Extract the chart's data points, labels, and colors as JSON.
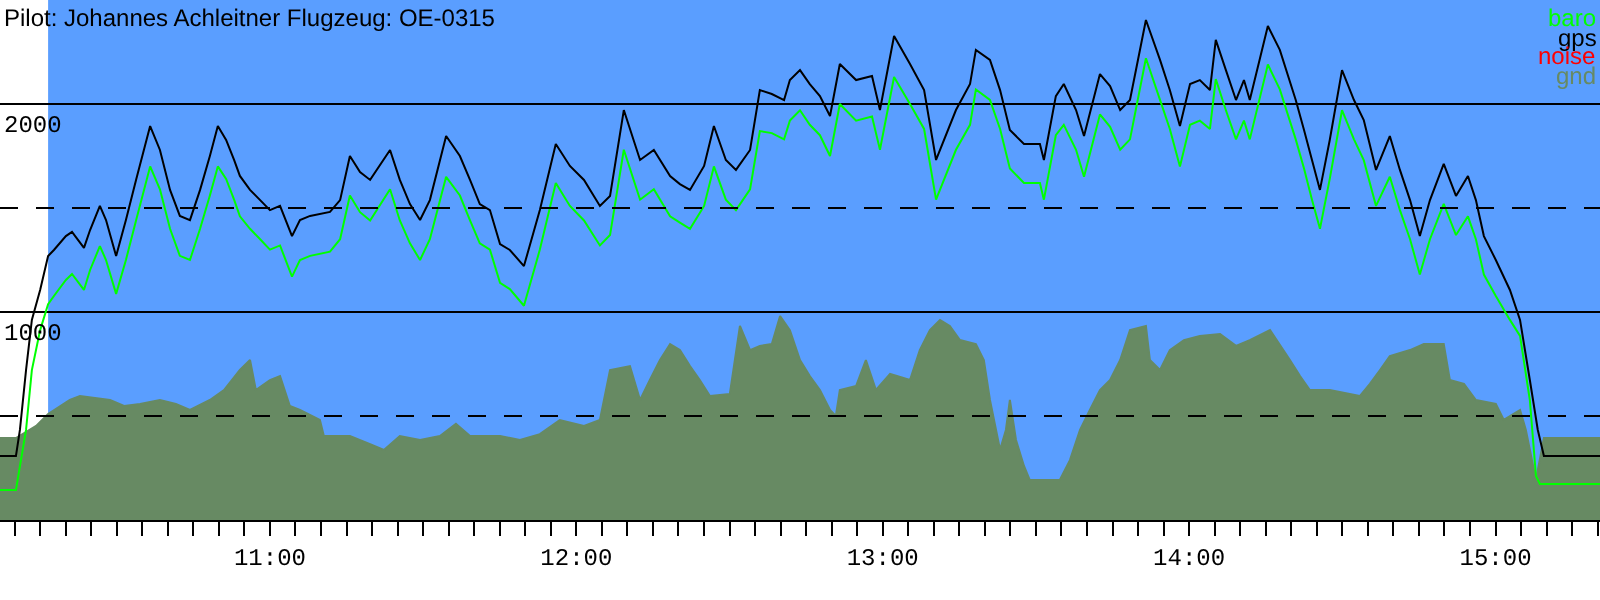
{
  "chart_data": {
    "type": "line",
    "title": "Pilot: Johannes Achleitner Flugzeug: OE-0315",
    "xlim": [
      10.119,
      15.341
    ],
    "ylim": [
      0,
      2500
    ],
    "yticks": [
      1000,
      2000
    ],
    "xticks": [
      {
        "value": 10.1667,
        "label": null
      },
      {
        "value": 10.25,
        "label": null
      },
      {
        "value": 10.3333,
        "label": null
      },
      {
        "value": 10.4167,
        "label": null
      },
      {
        "value": 10.5,
        "label": null
      },
      {
        "value": 10.5833,
        "label": null
      },
      {
        "value": 10.6667,
        "label": null
      },
      {
        "value": 10.75,
        "label": null
      },
      {
        "value": 10.8333,
        "label": null
      },
      {
        "value": 10.9167,
        "label": null
      },
      {
        "value": 11,
        "label": "11:00"
      },
      {
        "value": 11.0833,
        "label": null
      },
      {
        "value": 11.1667,
        "label": null
      },
      {
        "value": 11.25,
        "label": null
      },
      {
        "value": 11.3333,
        "label": null
      },
      {
        "value": 11.4167,
        "label": null
      },
      {
        "value": 11.5,
        "label": null
      },
      {
        "value": 11.5833,
        "label": null
      },
      {
        "value": 11.6667,
        "label": null
      },
      {
        "value": 11.75,
        "label": null
      },
      {
        "value": 11.8333,
        "label": null
      },
      {
        "value": 11.9167,
        "label": null
      },
      {
        "value": 12,
        "label": "12:00"
      },
      {
        "value": 12.0833,
        "label": null
      },
      {
        "value": 12.1667,
        "label": null
      },
      {
        "value": 12.25,
        "label": null
      },
      {
        "value": 12.3333,
        "label": null
      },
      {
        "value": 12.4167,
        "label": null
      },
      {
        "value": 12.5,
        "label": null
      },
      {
        "value": 12.5833,
        "label": null
      },
      {
        "value": 12.6667,
        "label": null
      },
      {
        "value": 12.75,
        "label": null
      },
      {
        "value": 12.8333,
        "label": null
      },
      {
        "value": 12.9167,
        "label": null
      },
      {
        "value": 13,
        "label": "13:00"
      },
      {
        "value": 13.0833,
        "label": null
      },
      {
        "value": 13.1667,
        "label": null
      },
      {
        "value": 13.25,
        "label": null
      },
      {
        "value": 13.3333,
        "label": null
      },
      {
        "value": 13.4167,
        "label": null
      },
      {
        "value": 13.5,
        "label": null
      },
      {
        "value": 13.5833,
        "label": null
      },
      {
        "value": 13.6667,
        "label": null
      },
      {
        "value": 13.75,
        "label": null
      },
      {
        "value": 13.8333,
        "label": null
      },
      {
        "value": 13.9167,
        "label": null
      },
      {
        "value": 14,
        "label": "14:00"
      },
      {
        "value": 14.0833,
        "label": null
      },
      {
        "value": 14.1667,
        "label": null
      },
      {
        "value": 14.25,
        "label": null
      },
      {
        "value": 14.3333,
        "label": null
      },
      {
        "value": 14.4167,
        "label": null
      },
      {
        "value": 14.5,
        "label": null
      },
      {
        "value": 14.5833,
        "label": null
      },
      {
        "value": 14.6667,
        "label": null
      },
      {
        "value": 14.75,
        "label": null
      },
      {
        "value": 14.8333,
        "label": null
      },
      {
        "value": 14.9167,
        "label": null
      },
      {
        "value": 15,
        "label": "15:00"
      },
      {
        "value": 15.0833,
        "label": null
      },
      {
        "value": 15.1667,
        "label": null
      },
      {
        "value": 15.25,
        "label": null
      },
      {
        "value": 15.3333,
        "label": null
      }
    ],
    "grid": "y",
    "legend": "top right",
    "ref_lines": [
      {
        "axis": "y",
        "value": 500,
        "color": "#000000",
        "line_style": "dashed"
      },
      {
        "axis": "y",
        "value": 1500,
        "color": "#000000",
        "line_style": "dashed"
      }
    ],
    "bands": [
      {
        "axis": "x",
        "from": 10.276,
        "to": 15.341,
        "color": "#5a9eff"
      }
    ],
    "series": [
      {
        "name": "gnd",
        "type": "area",
        "color": "#678a63",
        "x": [
          10.119,
          10.171,
          10.237,
          10.276,
          10.347,
          10.38,
          10.478,
          10.524,
          10.576,
          10.641,
          10.693,
          10.739,
          10.804,
          10.85,
          10.902,
          10.935,
          10.954,
          11.0,
          11.033,
          11.065,
          11.098,
          11.163,
          11.176,
          11.261,
          11.327,
          11.372,
          11.424,
          11.49,
          11.555,
          11.607,
          11.653,
          11.751,
          11.816,
          11.881,
          11.946,
          12.025,
          12.077,
          12.11,
          12.175,
          12.208,
          12.24,
          12.273,
          12.306,
          12.338,
          12.371,
          12.403,
          12.436,
          12.501,
          12.534,
          12.567,
          12.599,
          12.638,
          12.665,
          12.697,
          12.73,
          12.762,
          12.795,
          12.828,
          12.847,
          12.86,
          12.913,
          12.945,
          12.978,
          13.024,
          13.089,
          13.121,
          13.154,
          13.187,
          13.219,
          13.252,
          13.304,
          13.33,
          13.35,
          13.383,
          13.402,
          13.415,
          13.435,
          13.461,
          13.48,
          13.578,
          13.611,
          13.644,
          13.676,
          13.709,
          13.742,
          13.775,
          13.807,
          13.859,
          13.872,
          13.905,
          13.937,
          13.983,
          14.035,
          14.101,
          14.153,
          14.198,
          14.264,
          14.329,
          14.362,
          14.394,
          14.459,
          14.557,
          14.59,
          14.623,
          14.655,
          14.721,
          14.766,
          14.831,
          14.851,
          14.897,
          14.936,
          15.001,
          15.027,
          15.08,
          15.099,
          15.132,
          15.158,
          15.341
        ],
        "values": [
          394,
          394,
          452,
          510,
          577,
          596,
          577,
          548,
          558,
          577,
          558,
          529,
          577,
          625,
          721,
          769,
          625,
          673,
          692,
          548,
          529,
          481,
          404,
          404,
          365,
          337,
          404,
          385,
          404,
          462,
          404,
          404,
          385,
          413,
          481,
          452,
          481,
          721,
          740,
          577,
          673,
          769,
          846,
          817,
          740,
          673,
          596,
          606,
          933,
          817,
          837,
          846,
          981,
          913,
          769,
          692,
          625,
          529,
          500,
          625,
          644,
          769,
          625,
          702,
          673,
          817,
          913,
          962,
          933,
          865,
          846,
          769,
          577,
          337,
          433,
          577,
          385,
          260,
          192,
          192,
          288,
          433,
          529,
          625,
          673,
          769,
          913,
          933,
          769,
          721,
          817,
          865,
          885,
          894,
          837,
          865,
          913,
          769,
          692,
          625,
          625,
          596,
          654,
          721,
          788,
          817,
          846,
          846,
          673,
          654,
          577,
          558,
          481,
          529,
          433,
          192,
          394,
          394
        ]
      },
      {
        "name": "baro",
        "color": "#00ff00",
        "x": [
          10.119,
          10.171,
          10.204,
          10.223,
          10.25,
          10.276,
          10.295,
          10.334,
          10.354,
          10.393,
          10.413,
          10.445,
          10.465,
          10.498,
          10.53,
          10.563,
          10.609,
          10.641,
          10.674,
          10.706,
          10.739,
          10.772,
          10.804,
          10.83,
          10.857,
          10.883,
          10.902,
          10.935,
          10.968,
          11.0,
          11.033,
          11.072,
          11.098,
          11.131,
          11.196,
          11.229,
          11.261,
          11.294,
          11.327,
          11.392,
          11.424,
          11.457,
          11.49,
          11.522,
          11.575,
          11.62,
          11.653,
          11.685,
          11.718,
          11.751,
          11.783,
          11.829,
          11.881,
          11.933,
          11.979,
          12.025,
          12.077,
          12.11,
          12.155,
          12.208,
          12.253,
          12.306,
          12.338,
          12.371,
          12.417,
          12.449,
          12.488,
          12.521,
          12.567,
          12.599,
          12.638,
          12.678,
          12.697,
          12.73,
          12.762,
          12.795,
          12.828,
          12.86,
          12.913,
          12.965,
          12.991,
          13.037,
          13.089,
          13.135,
          13.174,
          13.239,
          13.285,
          13.304,
          13.35,
          13.383,
          13.415,
          13.461,
          13.513,
          13.526,
          13.565,
          13.591,
          13.631,
          13.657,
          13.709,
          13.742,
          13.775,
          13.807,
          13.859,
          13.905,
          13.937,
          13.97,
          14.003,
          14.035,
          14.068,
          14.087,
          14.12,
          14.153,
          14.179,
          14.198,
          14.257,
          14.296,
          14.348,
          14.375,
          14.401,
          14.427,
          14.459,
          14.499,
          14.538,
          14.57,
          14.61,
          14.655,
          14.688,
          14.721,
          14.753,
          14.786,
          14.831,
          14.871,
          14.91,
          14.936,
          14.962,
          15.001,
          15.047,
          15.08,
          15.112,
          15.132,
          15.145,
          15.341
        ],
        "values": [
          144,
          144,
          433,
          721,
          913,
          1038,
          1077,
          1154,
          1183,
          1106,
          1202,
          1317,
          1250,
          1087,
          1250,
          1440,
          1700,
          1590,
          1400,
          1270,
          1250,
          1400,
          1560,
          1700,
          1640,
          1540,
          1460,
          1400,
          1350,
          1300,
          1320,
          1170,
          1250,
          1270,
          1290,
          1350,
          1560,
          1480,
          1440,
          1590,
          1440,
          1330,
          1250,
          1350,
          1650,
          1560,
          1440,
          1330,
          1300,
          1140,
          1110,
          1030,
          1300,
          1620,
          1510,
          1440,
          1320,
          1370,
          1780,
          1540,
          1590,
          1460,
          1430,
          1400,
          1510,
          1700,
          1540,
          1490,
          1590,
          1870,
          1860,
          1830,
          1920,
          1970,
          1900,
          1850,
          1750,
          2000,
          1920,
          1940,
          1780,
          2130,
          2000,
          1880,
          1540,
          1780,
          1900,
          2070,
          2020,
          1880,
          1690,
          1620,
          1620,
          1540,
          1850,
          1900,
          1780,
          1650,
          1950,
          1890,
          1780,
          1830,
          2220,
          2020,
          1880,
          1700,
          1900,
          1920,
          1880,
          2120,
          1970,
          1830,
          1920,
          1830,
          2190,
          2070,
          1830,
          1690,
          1540,
          1400,
          1640,
          1970,
          1830,
          1730,
          1510,
          1650,
          1490,
          1350,
          1180,
          1350,
          1520,
          1370,
          1460,
          1350,
          1180,
          1077,
          962,
          885,
          577,
          212,
          173,
          173
        ]
      },
      {
        "name": "gps",
        "color": "#000000",
        "x": [
          10.119,
          10.171,
          10.184,
          10.204,
          10.223,
          10.25,
          10.276,
          10.295,
          10.334,
          10.354,
          10.393,
          10.413,
          10.445,
          10.465,
          10.498,
          10.53,
          10.563,
          10.609,
          10.641,
          10.674,
          10.706,
          10.739,
          10.772,
          10.804,
          10.83,
          10.857,
          10.883,
          10.902,
          10.935,
          10.968,
          11.0,
          11.033,
          11.072,
          11.098,
          11.131,
          11.196,
          11.229,
          11.261,
          11.294,
          11.327,
          11.392,
          11.424,
          11.457,
          11.49,
          11.522,
          11.575,
          11.62,
          11.653,
          11.685,
          11.718,
          11.751,
          11.783,
          11.829,
          11.881,
          11.933,
          11.979,
          12.025,
          12.077,
          12.11,
          12.155,
          12.208,
          12.253,
          12.306,
          12.338,
          12.371,
          12.417,
          12.449,
          12.488,
          12.521,
          12.567,
          12.599,
          12.638,
          12.678,
          12.697,
          12.73,
          12.762,
          12.795,
          12.828,
          12.86,
          12.913,
          12.965,
          12.991,
          13.037,
          13.089,
          13.135,
          13.174,
          13.239,
          13.285,
          13.304,
          13.35,
          13.383,
          13.415,
          13.461,
          13.513,
          13.526,
          13.565,
          13.591,
          13.631,
          13.657,
          13.709,
          13.742,
          13.775,
          13.807,
          13.859,
          13.905,
          13.937,
          13.97,
          14.003,
          14.035,
          14.068,
          14.087,
          14.12,
          14.153,
          14.179,
          14.198,
          14.257,
          14.296,
          14.348,
          14.375,
          14.401,
          14.427,
          14.459,
          14.499,
          14.538,
          14.57,
          14.61,
          14.655,
          14.688,
          14.721,
          14.753,
          14.786,
          14.831,
          14.871,
          14.91,
          14.936,
          14.962,
          15.001,
          15.047,
          15.08,
          15.112,
          15.138,
          15.158,
          15.21,
          15.341
        ],
        "values": [
          308,
          308,
          433,
          721,
          962,
          1106,
          1269,
          1298,
          1365,
          1385,
          1308,
          1394,
          1510,
          1442,
          1269,
          1442,
          1635,
          1894,
          1779,
          1587,
          1462,
          1442,
          1587,
          1750,
          1894,
          1827,
          1731,
          1654,
          1587,
          1538,
          1490,
          1510,
          1365,
          1442,
          1462,
          1481,
          1538,
          1750,
          1673,
          1635,
          1779,
          1635,
          1519,
          1442,
          1538,
          1846,
          1750,
          1635,
          1519,
          1490,
          1327,
          1298,
          1221,
          1490,
          1808,
          1702,
          1635,
          1510,
          1558,
          1971,
          1731,
          1779,
          1654,
          1615,
          1587,
          1702,
          1894,
          1731,
          1683,
          1779,
          2067,
          2048,
          2019,
          2115,
          2163,
          2096,
          2038,
          1942,
          2192,
          2115,
          2135,
          1971,
          2327,
          2192,
          2067,
          1731,
          1971,
          2096,
          2260,
          2212,
          2067,
          1875,
          1808,
          1808,
          1731,
          2038,
          2096,
          1971,
          1846,
          2144,
          2086,
          1971,
          2019,
          2404,
          2212,
          2067,
          1894,
          2096,
          2115,
          2067,
          2308,
          2163,
          2019,
          2115,
          2019,
          2375,
          2260,
          2019,
          1875,
          1731,
          1587,
          1827,
          2163,
          2019,
          1923,
          1683,
          1846,
          1683,
          1538,
          1365,
          1538,
          1712,
          1558,
          1654,
          1538,
          1365,
          1250,
          1106,
          962,
          673,
          433,
          308,
          308,
          308
        ]
      },
      {
        "name": "noise",
        "color": "#ff0000"
      }
    ]
  }
}
